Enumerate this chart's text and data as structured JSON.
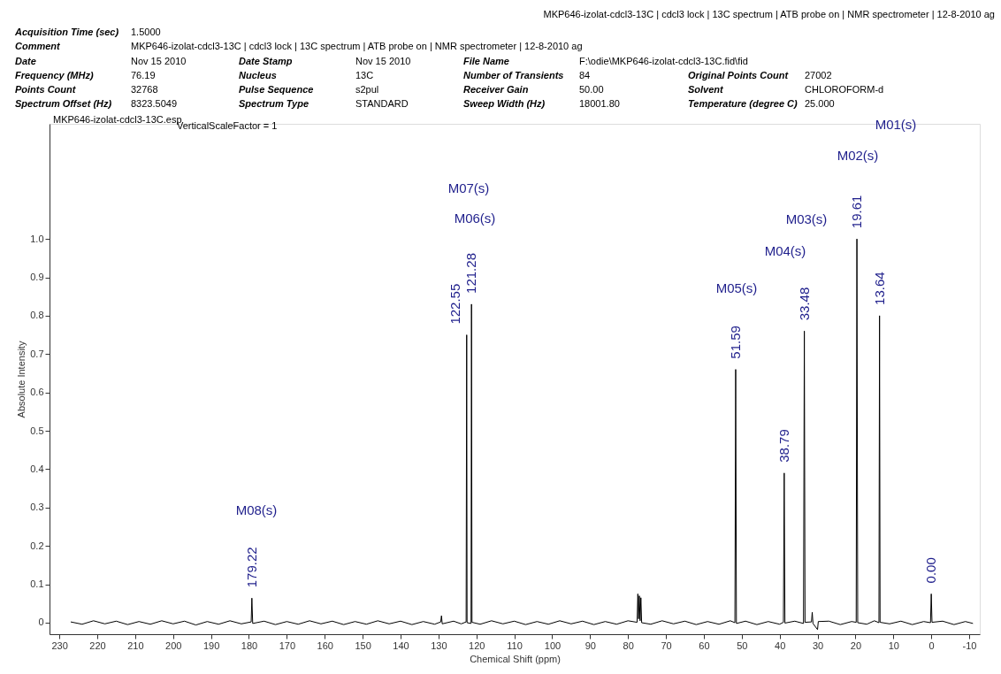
{
  "chart_data": {
    "type": "line",
    "xlabel": "Chemical Shift (ppm)",
    "ylabel": "Absolute Intensity",
    "xlim": [
      232.6,
      -12.8
    ],
    "ylim": [
      -0.03,
      1.3
    ],
    "xticks": [
      230,
      220,
      210,
      200,
      190,
      180,
      170,
      160,
      150,
      140,
      130,
      120,
      110,
      100,
      90,
      80,
      70,
      60,
      50,
      40,
      30,
      20,
      10,
      0,
      -10
    ],
    "yticks": [
      0,
      0.1,
      0.2,
      0.3,
      0.4,
      0.5,
      0.6,
      0.7,
      0.8,
      0.9,
      {
        "value": 1,
        "label": "1.0"
      }
    ],
    "grid": false,
    "marker": "none",
    "line_style": "solid",
    "series": [
      {
        "color": "#000000",
        "x": [
          227,
          224,
          221,
          218,
          215,
          212,
          209,
          206,
          203,
          200,
          197,
          194,
          191,
          188,
          185,
          182,
          179.4,
          179.22,
          179.0,
          176,
          173,
          170,
          167,
          164,
          161,
          158,
          155,
          152,
          149,
          146,
          143,
          140,
          137,
          134,
          131,
          129.4,
          129.2,
          129.0,
          126,
          124,
          122.7,
          122.55,
          122.45,
          121.4,
          121.28,
          121.15,
          119,
          116,
          113,
          110,
          107,
          104,
          101,
          98,
          95,
          92,
          89,
          86,
          83,
          80,
          77.6,
          77.4,
          77.2,
          77.0,
          76.8,
          76.6,
          76.4,
          74,
          71,
          68,
          65,
          62,
          59,
          56,
          53,
          51.8,
          51.59,
          51.4,
          49,
          46,
          43,
          40,
          39.0,
          38.79,
          38.6,
          36,
          33.7,
          33.48,
          33.3,
          31.6,
          31.4,
          31.2,
          30.0,
          29.8,
          27,
          24,
          21,
          19.8,
          19.61,
          19.4,
          17,
          15,
          13.8,
          13.64,
          13.5,
          11,
          8,
          5,
          2,
          0.2,
          0.0,
          -0.2,
          -3,
          -6,
          -9,
          -11
        ],
        "values": [
          0.002,
          -0.004,
          0.005,
          -0.003,
          0.004,
          -0.005,
          0.003,
          -0.004,
          0.005,
          -0.003,
          0.004,
          -0.006,
          0.003,
          -0.004,
          0.005,
          -0.003,
          0.002,
          0.064,
          -0.002,
          0.004,
          -0.005,
          0.003,
          -0.004,
          0.005,
          -0.003,
          0.004,
          -0.005,
          0.003,
          -0.004,
          0.005,
          -0.003,
          0.004,
          -0.005,
          0.003,
          -0.004,
          0.002,
          0.018,
          -0.003,
          0.004,
          -0.003,
          0.002,
          0.75,
          0.0,
          -0.002,
          0.83,
          0.001,
          -0.004,
          0.005,
          -0.003,
          0.004,
          -0.005,
          0.003,
          -0.004,
          0.005,
          -0.003,
          0.004,
          -0.005,
          0.003,
          -0.004,
          0.005,
          0.001,
          0.075,
          0.01,
          0.07,
          0.005,
          0.065,
          0.0,
          -0.004,
          0.005,
          -0.003,
          0.004,
          -0.005,
          0.003,
          -0.004,
          0.005,
          0.0,
          0.66,
          -0.002,
          0.004,
          -0.005,
          0.003,
          -0.004,
          0.001,
          0.39,
          -0.001,
          0.004,
          -0.002,
          0.76,
          0.001,
          0.002,
          0.027,
          -0.002,
          -0.018,
          0.003,
          0.004,
          -0.005,
          0.003,
          0.001,
          1.0,
          0.0,
          -0.004,
          0.005,
          0.0,
          0.8,
          0.001,
          -0.003,
          0.004,
          -0.005,
          0.003,
          0.0,
          0.075,
          0.001,
          0.004,
          -0.005,
          0.003,
          -0.002
        ]
      }
    ],
    "annotations": [
      "MKP646-izolat-cdcl3-13C | cdcl3 lock | 13C spectrum | ATB probe on | NMR spectrometer | 12-8-2010 ag",
      "Acquisition Time (sec)",
      "1.5000",
      "Comment",
      "MKP646-izolat-cdcl3-13C | cdcl3 lock | 13C spectrum | ATB probe on | NMR spectrometer | 12-8-2010 ag",
      "Date",
      "Nov 15 2010",
      "Date Stamp",
      "Nov 15 2010",
      "File Name",
      "F:\\odie\\MKP646-izolat-cdcl3-13C.fid\\fid",
      "Frequency (MHz)",
      "76.19",
      "Nucleus",
      "13C",
      "Number of Transients",
      "84",
      "Original Points Count",
      "27002",
      "Points Count",
      "32768",
      "Pulse Sequence",
      "s2pul",
      "Receiver Gain",
      "50.00",
      "Solvent",
      "CHLOROFORM-d",
      "Spectrum Offset (Hz)",
      "8323.5049",
      "Spectrum Type",
      "STANDARD",
      "Sweep Width (Hz)",
      "18001.80",
      "Temperature (degree C)",
      "25.000",
      "MKP646-izolat-cdcl3-13C.esp",
      "VerticalScaleFactor = 1",
      {
        "text": "179.22",
        "x": 179.22,
        "y": 0.064
      },
      {
        "text": "122.55",
        "x": 122.55,
        "y": 0.75
      },
      {
        "text": "121.28",
        "x": 121.28,
        "y": 0.83
      },
      {
        "text": "51.59",
        "x": 51.59,
        "y": 0.66
      },
      {
        "text": "38.79",
        "x": 38.79,
        "y": 0.39
      },
      {
        "text": "33.48",
        "x": 33.48,
        "y": 0.76
      },
      {
        "text": "19.61",
        "x": 19.61,
        "y": 1.0
      },
      {
        "text": "13.64",
        "x": 13.64,
        "y": 0.8
      },
      {
        "text": "0.00",
        "x": 0.0,
        "y": 0.075
      },
      "M01(s)",
      "M02(s)",
      "M03(s)",
      "M04(s)",
      "M05(s)",
      "M06(s)",
      "M07(s)",
      "M08(s)"
    ]
  }
}
